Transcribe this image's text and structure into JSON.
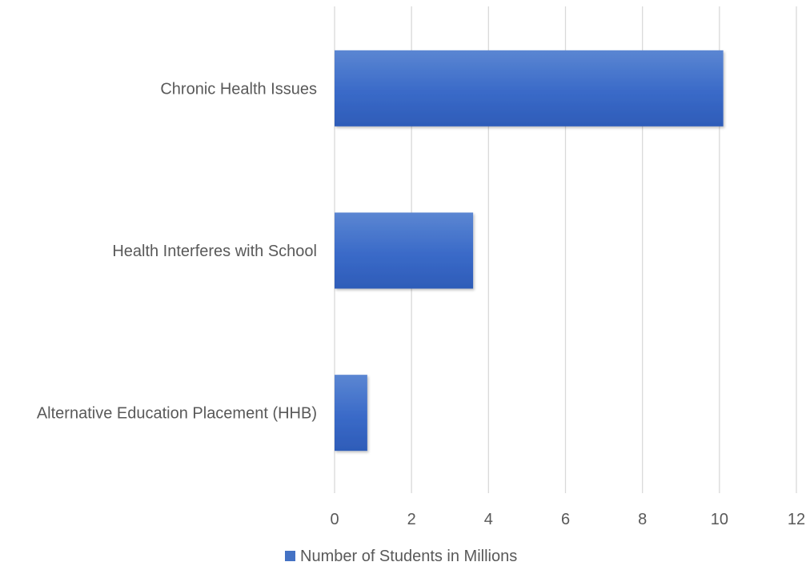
{
  "chart_data": {
    "type": "bar",
    "orientation": "horizontal",
    "categories": [
      "Chronic Health Issues",
      "Health Interferes with School",
      "Alternative Education Placement (HHB)"
    ],
    "series": [
      {
        "name": "Number of Students in Millions",
        "values": [
          10.1,
          3.6,
          0.85
        ],
        "color": "#4472C4"
      }
    ],
    "xlim": [
      0,
      12
    ],
    "x_ticks": [
      "0",
      "2",
      "4",
      "6",
      "8",
      "10",
      "12"
    ],
    "grid": "vertical",
    "legend_position": "bottom"
  }
}
